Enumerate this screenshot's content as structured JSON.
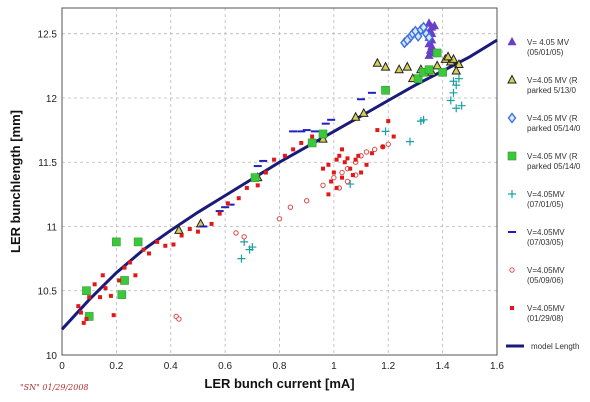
{
  "chart_data": {
    "type": "scatter",
    "xlabel": "LER bunch current [mA]",
    "ylabel": "LER bunchlength [mm]",
    "xlim": [
      0,
      1.6
    ],
    "ylim": [
      10,
      12.7
    ],
    "xticks": [
      "0",
      "0.2",
      "0.4",
      "0.6",
      "0.8",
      "1",
      "1.2",
      "1.4",
      "1.6"
    ],
    "yticks": [
      "10",
      "10.5",
      "11",
      "11.5",
      "12",
      "12.5"
    ],
    "grid": "dashed",
    "legend_position": "right",
    "signature": "\"SN\" 01/29/2008",
    "series": [
      {
        "name_lines": [
          "V= 4.05 MV",
          "(05/01/05)"
        ],
        "marker": "triangle",
        "color": "#6a3fc8",
        "points": [
          [
            1.35,
            12.58
          ],
          [
            1.36,
            12.55
          ],
          [
            1.355,
            12.52
          ],
          [
            1.36,
            12.5
          ],
          [
            1.35,
            12.47
          ],
          [
            1.36,
            12.45
          ],
          [
            1.35,
            12.42
          ],
          [
            1.36,
            12.4
          ],
          [
            1.355,
            12.37
          ],
          [
            1.36,
            12.35
          ],
          [
            1.35,
            12.33
          ],
          [
            1.37,
            12.56
          ]
        ]
      },
      {
        "name_lines": [
          "V=4.05 MV (R",
          "parked 5/13/0"
        ],
        "marker": "triangle-open",
        "color": "#6b6b00",
        "points": [
          [
            0.43,
            10.97
          ],
          [
            0.51,
            11.02
          ],
          [
            0.72,
            11.38
          ],
          [
            0.96,
            11.68
          ],
          [
            1.08,
            11.85
          ],
          [
            1.11,
            11.88
          ],
          [
            1.16,
            12.27
          ],
          [
            1.19,
            12.24
          ],
          [
            1.24,
            12.22
          ],
          [
            1.27,
            12.24
          ],
          [
            1.29,
            12.15
          ],
          [
            1.32,
            12.22
          ],
          [
            1.36,
            12.2
          ],
          [
            1.38,
            12.25
          ],
          [
            1.41,
            12.3
          ],
          [
            1.43,
            12.28
          ],
          [
            1.44,
            12.3
          ],
          [
            1.46,
            12.26
          ],
          [
            1.45,
            12.21
          ],
          [
            1.42,
            12.32
          ]
        ]
      },
      {
        "name_lines": [
          "V=4.05 MV (R",
          "parked 05/14/0"
        ],
        "marker": "diamond",
        "color": "#3a6fe0",
        "points": [
          [
            1.26,
            12.43
          ],
          [
            1.28,
            12.47
          ],
          [
            1.29,
            12.5
          ],
          [
            1.31,
            12.48
          ],
          [
            1.3,
            12.52
          ],
          [
            1.32,
            12.53
          ],
          [
            1.34,
            12.5
          ],
          [
            1.35,
            12.47
          ],
          [
            1.27,
            12.45
          ],
          [
            1.33,
            12.55
          ]
        ]
      },
      {
        "name_lines": [
          "V=4.05 MV (R",
          "parked 05/14/0"
        ],
        "marker": "square",
        "color": "#3cc83c",
        "points": [
          [
            0.09,
            10.5
          ],
          [
            0.1,
            10.3
          ],
          [
            0.2,
            10.88
          ],
          [
            0.22,
            10.47
          ],
          [
            0.23,
            10.58
          ],
          [
            0.28,
            10.88
          ],
          [
            0.71,
            11.38
          ],
          [
            0.92,
            11.65
          ],
          [
            0.96,
            11.72
          ],
          [
            1.19,
            12.06
          ],
          [
            1.31,
            12.15
          ],
          [
            1.33,
            12.2
          ],
          [
            1.35,
            12.22
          ],
          [
            1.38,
            12.35
          ],
          [
            1.4,
            12.2
          ]
        ]
      },
      {
        "name_lines": [
          "V=4.05MV",
          "(07/01/05)"
        ],
        "marker": "plus",
        "color": "#1aa0a0",
        "points": [
          [
            0.67,
            10.88
          ],
          [
            0.69,
            10.82
          ],
          [
            0.7,
            10.84
          ],
          [
            0.66,
            10.75
          ],
          [
            1.06,
            11.33
          ],
          [
            1.19,
            11.74
          ],
          [
            1.28,
            11.66
          ],
          [
            1.32,
            11.82
          ],
          [
            1.33,
            11.83
          ],
          [
            1.44,
            12.13
          ],
          [
            1.45,
            12.1
          ],
          [
            1.44,
            12.04
          ],
          [
            1.43,
            11.98
          ],
          [
            1.45,
            11.92
          ],
          [
            1.47,
            11.94
          ],
          [
            1.46,
            12.15
          ]
        ]
      },
      {
        "name_lines": [
          "V=4.05MV",
          "(07/03/05)"
        ],
        "marker": "dash",
        "color": "#2020c0",
        "points": [
          [
            0.52,
            11.0
          ],
          [
            0.58,
            11.12
          ],
          [
            0.6,
            11.15
          ],
          [
            0.62,
            11.17
          ],
          [
            0.72,
            11.47
          ],
          [
            0.74,
            11.51
          ],
          [
            0.85,
            11.74
          ],
          [
            0.88,
            11.74
          ],
          [
            0.9,
            11.75
          ],
          [
            0.93,
            11.74
          ],
          [
            0.97,
            11.8
          ],
          [
            0.99,
            11.83
          ],
          [
            1.1,
            11.99
          ],
          [
            1.14,
            12.04
          ]
        ]
      },
      {
        "name_lines": [
          "V=4.05MV",
          "(05/09/06)"
        ],
        "marker": "circle-open",
        "color": "#e04848",
        "points": [
          [
            0.42,
            10.3
          ],
          [
            0.43,
            10.28
          ],
          [
            0.64,
            10.95
          ],
          [
            0.67,
            10.92
          ],
          [
            0.8,
            11.06
          ],
          [
            0.84,
            11.15
          ],
          [
            0.9,
            11.2
          ],
          [
            0.96,
            11.32
          ],
          [
            1.0,
            11.38
          ],
          [
            1.03,
            11.42
          ],
          [
            1.05,
            11.45
          ],
          [
            1.08,
            11.5
          ],
          [
            1.1,
            11.55
          ],
          [
            1.12,
            11.58
          ],
          [
            1.15,
            11.6
          ],
          [
            1.18,
            11.62
          ],
          [
            1.2,
            11.64
          ],
          [
            1.02,
            11.3
          ],
          [
            1.05,
            11.35
          ],
          [
            1.08,
            11.4
          ]
        ]
      },
      {
        "name_lines": [
          "V=4.05MV",
          "(01/29/08)"
        ],
        "marker": "square-small",
        "color": "#e01818",
        "points": [
          [
            0.06,
            10.38
          ],
          [
            0.07,
            10.33
          ],
          [
            0.08,
            10.25
          ],
          [
            0.09,
            10.28
          ],
          [
            0.1,
            10.45
          ],
          [
            0.12,
            10.55
          ],
          [
            0.14,
            10.45
          ],
          [
            0.15,
            10.62
          ],
          [
            0.16,
            10.52
          ],
          [
            0.18,
            10.46
          ],
          [
            0.19,
            10.31
          ],
          [
            0.21,
            10.58
          ],
          [
            0.23,
            10.68
          ],
          [
            0.25,
            10.72
          ],
          [
            0.27,
            10.62
          ],
          [
            0.3,
            10.82
          ],
          [
            0.32,
            10.79
          ],
          [
            0.35,
            10.88
          ],
          [
            0.38,
            10.85
          ],
          [
            0.41,
            10.86
          ],
          [
            0.44,
            10.93
          ],
          [
            0.47,
            10.98
          ],
          [
            0.5,
            10.96
          ],
          [
            0.55,
            11.02
          ],
          [
            0.58,
            11.1
          ],
          [
            0.61,
            11.18
          ],
          [
            0.65,
            11.22
          ],
          [
            0.68,
            11.3
          ],
          [
            0.72,
            11.32
          ],
          [
            0.75,
            11.42
          ],
          [
            0.78,
            11.52
          ],
          [
            0.82,
            11.55
          ],
          [
            0.85,
            11.6
          ],
          [
            0.88,
            11.65
          ],
          [
            0.92,
            11.7
          ],
          [
            0.96,
            11.45
          ],
          [
            0.98,
            11.48
          ],
          [
            1.0,
            11.42
          ],
          [
            1.01,
            11.52
          ],
          [
            1.02,
            11.55
          ],
          [
            1.03,
            11.38
          ],
          [
            1.04,
            11.5
          ],
          [
            1.05,
            11.53
          ],
          [
            1.06,
            11.45
          ],
          [
            1.07,
            11.4
          ],
          [
            1.08,
            11.52
          ],
          [
            1.09,
            11.55
          ],
          [
            1.1,
            11.42
          ],
          [
            1.12,
            11.48
          ],
          [
            1.14,
            11.57
          ],
          [
            1.16,
            11.75
          ],
          [
            1.18,
            11.62
          ],
          [
            1.2,
            11.82
          ],
          [
            1.22,
            11.7
          ],
          [
            0.99,
            11.35
          ],
          [
            1.01,
            11.3
          ],
          [
            0.98,
            11.25
          ],
          [
            1.03,
            11.6
          ]
        ]
      }
    ],
    "model": {
      "name_lines": [
        "model Length"
      ],
      "color": "#1a1a7a",
      "points": [
        [
          0,
          10.2
        ],
        [
          0.1,
          10.43
        ],
        [
          0.2,
          10.64
        ],
        [
          0.3,
          10.82
        ],
        [
          0.4,
          10.97
        ],
        [
          0.5,
          11.11
        ],
        [
          0.6,
          11.24
        ],
        [
          0.7,
          11.37
        ],
        [
          0.8,
          11.5
        ],
        [
          0.9,
          11.62
        ],
        [
          1.0,
          11.74
        ],
        [
          1.1,
          11.86
        ],
        [
          1.2,
          11.98
        ],
        [
          1.3,
          12.1
        ],
        [
          1.4,
          12.21
        ],
        [
          1.5,
          12.32
        ],
        [
          1.6,
          12.45
        ]
      ]
    }
  }
}
